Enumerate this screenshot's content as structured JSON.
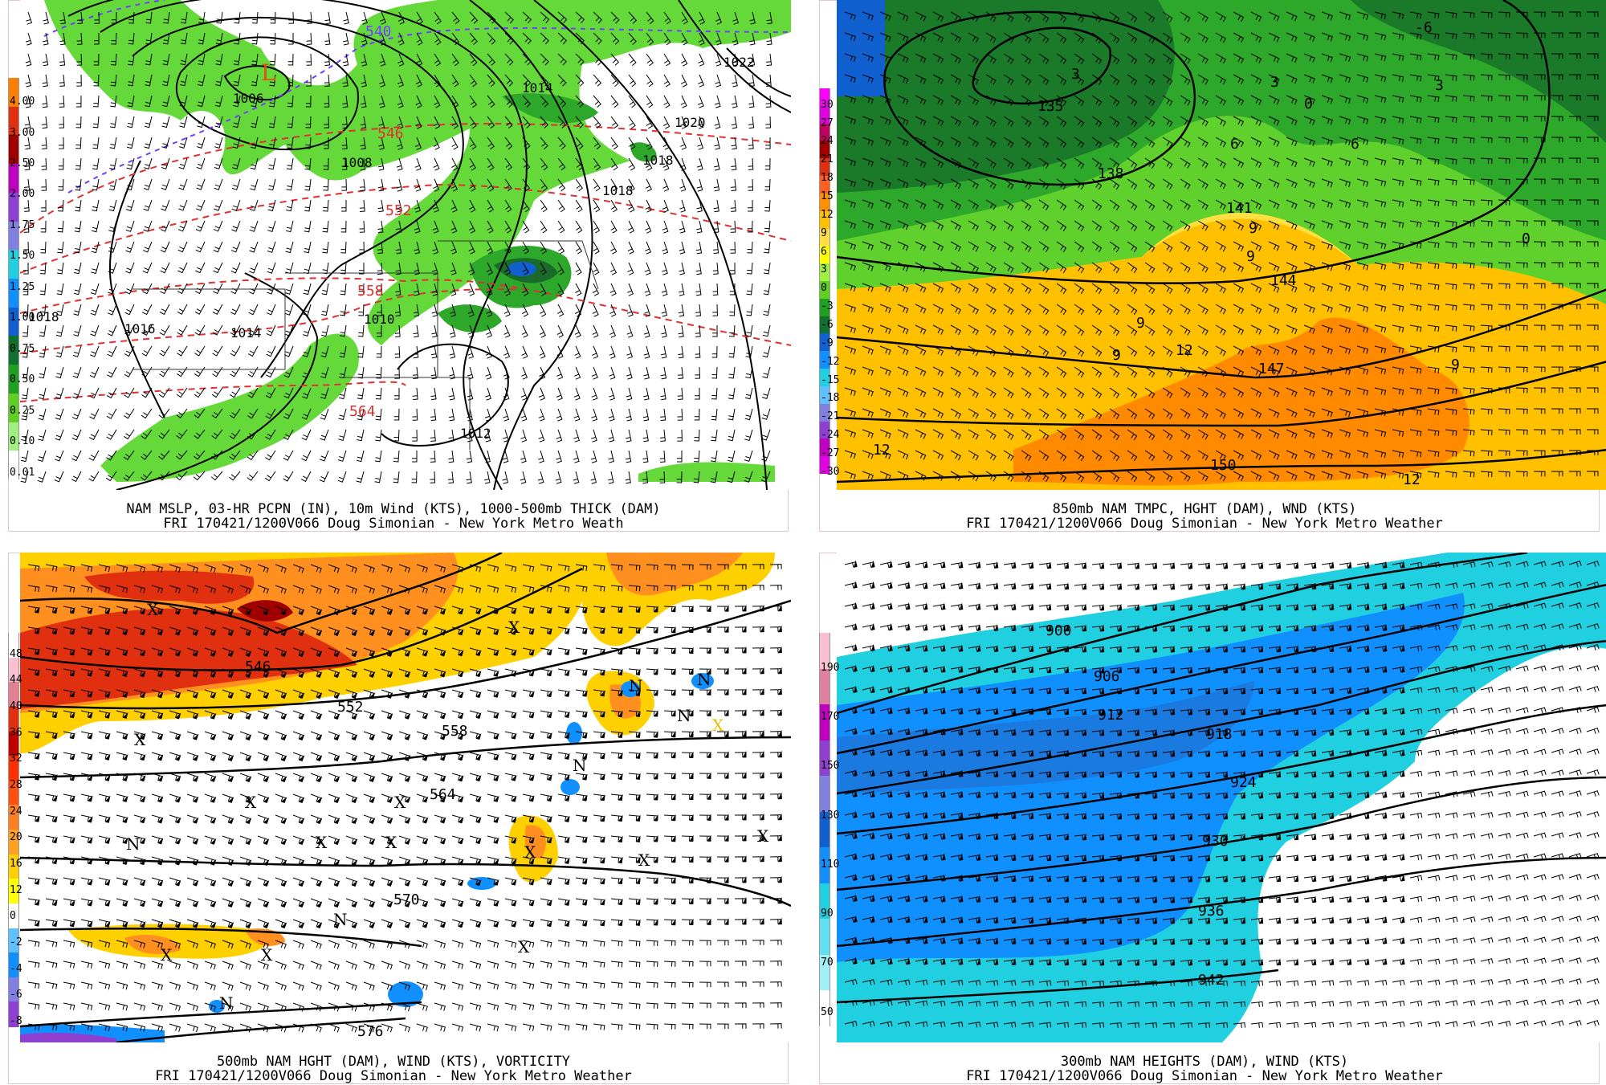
{
  "panels": [
    {
      "caption1": "NAM MSLP, 03-HR PCPN (IN), 10m Wind (KTS), 1000-500mb THICK (DAM)",
      "caption2": "FRI 170421/1200V066 Doug Simonian - New York Metro Weath",
      "legend_labels": [
        "4.00",
        "3.00",
        "2.50",
        "2.00",
        "1.75",
        "1.50",
        "1.25",
        "1.00",
        "0.75",
        "0.50",
        "0.25",
        "0.10",
        "0.01"
      ],
      "legend_colors": [
        "#ff7f00",
        "#e03010",
        "#a00000",
        "#c000c0",
        "#9040d0",
        "#8080e0",
        "#20d0e0",
        "#1090ff",
        "#1060d0",
        "#107030",
        "#20a020",
        "#60d020",
        "#a0f080",
        "#ffffff"
      ],
      "contour_labels": [
        "1006",
        "1008",
        "1014",
        "1020",
        "1018",
        "1018",
        "1016",
        "1014",
        "1010",
        "1012",
        "1022",
        "1018"
      ],
      "thickness_labels": [
        "540",
        "546",
        "552",
        "558",
        "564"
      ],
      "low_symbol": "L"
    },
    {
      "caption1": "850mb NAM TMPC, HGHT (DAM), WND (KTS)",
      "caption2": "FRI 170421/1200V066 Doug Simonian - New York Metro Weather",
      "legend_labels": [
        "30",
        "27",
        "24",
        "21",
        "18",
        "15",
        "12",
        "9",
        "6",
        "3",
        "0",
        "-3",
        "-6",
        "-9",
        "-12",
        "-15",
        "-18",
        "-21",
        "-24",
        "-27",
        "-30"
      ],
      "legend_colors": [
        "#ff00ff",
        "#e000e0",
        "#c00060",
        "#a00000",
        "#e03010",
        "#ff6020",
        "#ff9000",
        "#ffc000",
        "#ffe040",
        "#ffff00",
        "#a0f040",
        "#60d020",
        "#20a020",
        "#107030",
        "#1060d0",
        "#1090ff",
        "#20d0e0",
        "#60c0ff",
        "#8080e0",
        "#9040d0",
        "#c000c0",
        "#e000e0"
      ],
      "height_labels": [
        "135",
        "138",
        "141",
        "144",
        "147",
        "150"
      ],
      "temp_labels": [
        "3",
        "3",
        "3",
        "6",
        "6",
        "9",
        "9",
        "9",
        "9",
        "9",
        "12",
        "12",
        "12",
        "0",
        "0",
        "-6"
      ]
    },
    {
      "caption1": "500mb NAM HGHT (DAM), WIND (KTS), VORTICITY",
      "caption2": "FRI 170421/1200V066 Doug Simonian - New York Metro Weather",
      "legend_labels": [
        "48",
        "44",
        "40",
        "36",
        "32",
        "28",
        "24",
        "20",
        "16",
        "12",
        "0",
        "-2",
        "-4",
        "-6",
        "-8"
      ],
      "legend_colors": [
        "#ffffff",
        "#f8c0d0",
        "#e08090",
        "#e03010",
        "#c00000",
        "#ff3000",
        "#ff5010",
        "#ff8020",
        "#ffa020",
        "#ffd000",
        "#ffff00",
        "#ffffff",
        "#60c0ff",
        "#1090ff",
        "#8080e0",
        "#9040d0"
      ],
      "height_labels": [
        "546",
        "552",
        "558",
        "564",
        "570",
        "576"
      ],
      "extrema": [
        "X",
        "X",
        "X",
        "X",
        "X",
        "X",
        "X",
        "X",
        "X",
        "X",
        "X",
        "X",
        "X",
        "N",
        "N",
        "N",
        "N",
        "N",
        "N",
        "N"
      ]
    },
    {
      "caption1": "300mb NAM HEIGHTS (DAM), WIND (KTS)",
      "caption2": "FRI 170421/1200V066 Doug Simonian - New York Metro Weather",
      "legend_labels": [
        "190",
        "170",
        "150",
        "130",
        "110",
        "90",
        "70",
        "50"
      ],
      "legend_colors": [
        "#f8c0d0",
        "#e080a0",
        "#c000c0",
        "#9040d0",
        "#8080e0",
        "#1060d0",
        "#1090ff",
        "#20d0e0",
        "#60e0f0",
        "#a0f0f8",
        "#ffffff"
      ],
      "height_labels": [
        "900",
        "906",
        "912",
        "918",
        "924",
        "930",
        "936",
        "942"
      ]
    }
  ]
}
